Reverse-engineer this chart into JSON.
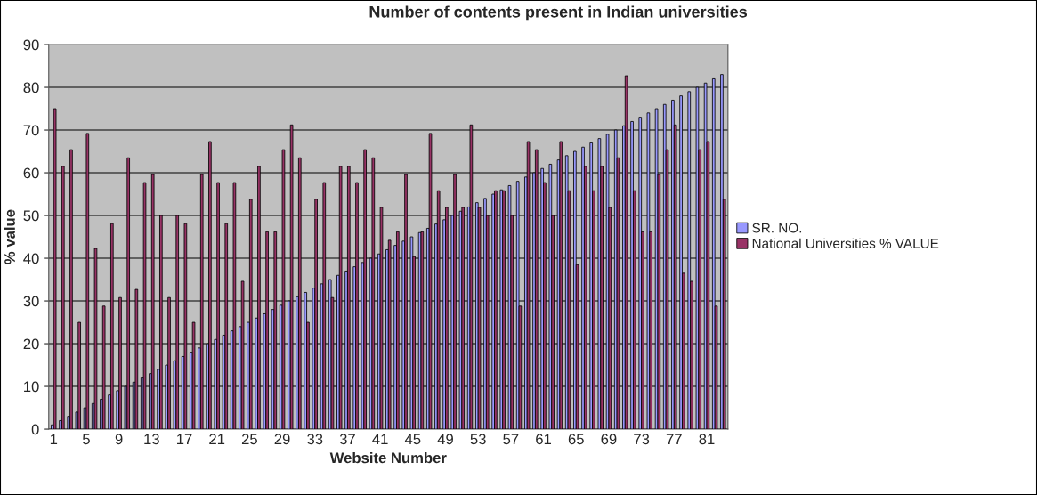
{
  "chart_data": {
    "type": "bar",
    "title": "Number of contents present in Indian universities",
    "xlabel": "Website Number",
    "ylabel": "% value",
    "categories": [
      "1",
      null,
      null,
      null,
      "5",
      null,
      null,
      null,
      "9",
      null,
      null,
      null,
      "13",
      null,
      null,
      null,
      "17",
      null,
      null,
      null,
      "21",
      null,
      null,
      null,
      "25",
      null,
      null,
      null,
      "29",
      null,
      null,
      null,
      "33",
      null,
      null,
      null,
      "37",
      null,
      null,
      null,
      "41",
      null,
      null,
      null,
      "45",
      null,
      null,
      null,
      "49",
      null,
      null,
      null,
      "53",
      null,
      null,
      null,
      "57",
      null,
      null,
      null,
      "61",
      null,
      null,
      null,
      "65",
      null,
      null,
      null,
      "69",
      null,
      null,
      null,
      "73",
      null,
      null,
      null,
      "77",
      null,
      null,
      null,
      "81",
      null,
      null
    ],
    "series": [
      {
        "name": "SR. NO.",
        "color": "#9999ff",
        "values": [
          1,
          2,
          3,
          4,
          5,
          6,
          7,
          8,
          9,
          10,
          11,
          12,
          13,
          14,
          15,
          16,
          17,
          18,
          19,
          20,
          21,
          22,
          23,
          24,
          25,
          26,
          27,
          28,
          29,
          30,
          31,
          32,
          33,
          34,
          35,
          36,
          37,
          38,
          39,
          40,
          41,
          42,
          43,
          44,
          45,
          46,
          47,
          48,
          49,
          50,
          51,
          52,
          53,
          54,
          55,
          56,
          57,
          58,
          59,
          60,
          61,
          62,
          63,
          64,
          65,
          66,
          67,
          68,
          69,
          70,
          71,
          72,
          73,
          74,
          75,
          76,
          77,
          78,
          79,
          80,
          81,
          82,
          83
        ]
      },
      {
        "name": "National Universities % VALUE",
        "color": "#993366",
        "values": [
          75,
          61.5,
          65.4,
          25,
          69.2,
          42.3,
          28.8,
          48.1,
          30.8,
          63.5,
          32.7,
          57.7,
          59.6,
          50,
          30.8,
          50,
          48.1,
          25,
          59.6,
          67.3,
          57.7,
          48.1,
          57.7,
          34.6,
          53.8,
          61.5,
          46.2,
          46.2,
          65.4,
          71.2,
          63.5,
          25,
          53.8,
          57.7,
          30.8,
          61.5,
          61.5,
          57.7,
          65.4,
          63.5,
          51.9,
          44.2,
          46.2,
          59.6,
          40.4,
          46.2,
          69.2,
          55.8,
          51.9,
          59.6,
          51.9,
          71.2,
          51.9,
          50,
          55.8,
          55.8,
          50,
          28.8,
          67.3,
          65.4,
          57.7,
          50,
          67.3,
          55.8,
          38.5,
          61.5,
          55.8,
          61.5,
          51.9,
          63.5,
          82.7,
          55.8,
          46.2,
          46.2,
          59.6,
          65.4,
          71.2,
          36.5,
          34.6,
          65.4,
          67.3,
          28.8,
          53.8
        ]
      }
    ],
    "ylim": [
      0,
      90
    ],
    "yticks": [
      0,
      10,
      20,
      30,
      40,
      50,
      60,
      70,
      80,
      90
    ],
    "grid": "y",
    "legend": "right"
  }
}
